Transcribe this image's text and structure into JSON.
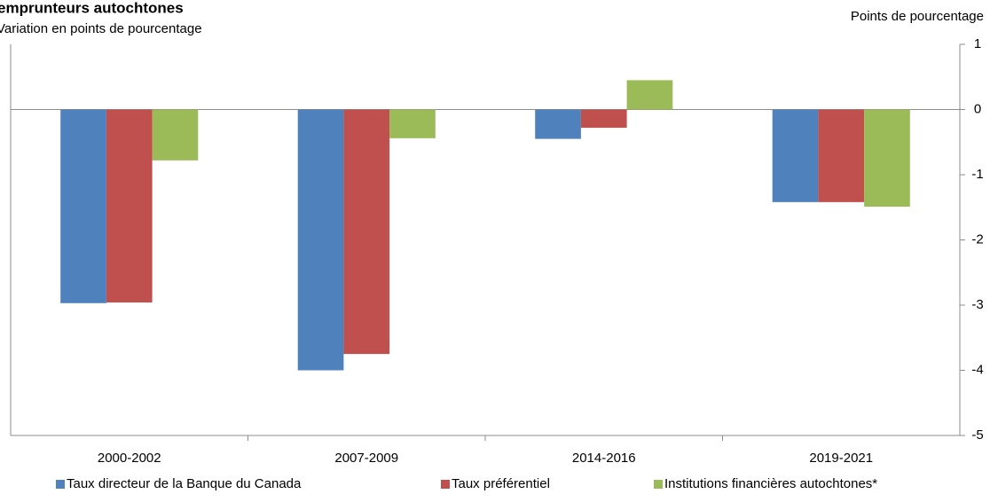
{
  "chart_data": {
    "type": "bar",
    "title": "emprunteurs autochtones",
    "subtitle": "Variation en points de pourcentage",
    "y_axis_label": "Points de pourcentage",
    "categories": [
      "2000-2002",
      "2007-2009",
      "2014-2016",
      "2019-2021"
    ],
    "series": [
      {
        "name": "Taux directeur de la Banque du Canada",
        "color": "#4f81bd",
        "values": [
          -2.97,
          -4.0,
          -0.45,
          -1.42
        ]
      },
      {
        "name": "Taux préférentiel",
        "color": "#c0504d",
        "values": [
          -2.96,
          -3.75,
          -0.28,
          -1.42
        ]
      },
      {
        "name": "Institutions financières autochtones*",
        "color": "#9bbb59",
        "values": [
          -0.78,
          -0.44,
          0.45,
          -1.49
        ]
      }
    ],
    "ylim": [
      -5,
      1
    ],
    "yticks": [
      1,
      0,
      -1,
      -2,
      -3,
      -4,
      -5
    ],
    "y_axis_side": "right",
    "legend": "bottom",
    "grid": false
  }
}
